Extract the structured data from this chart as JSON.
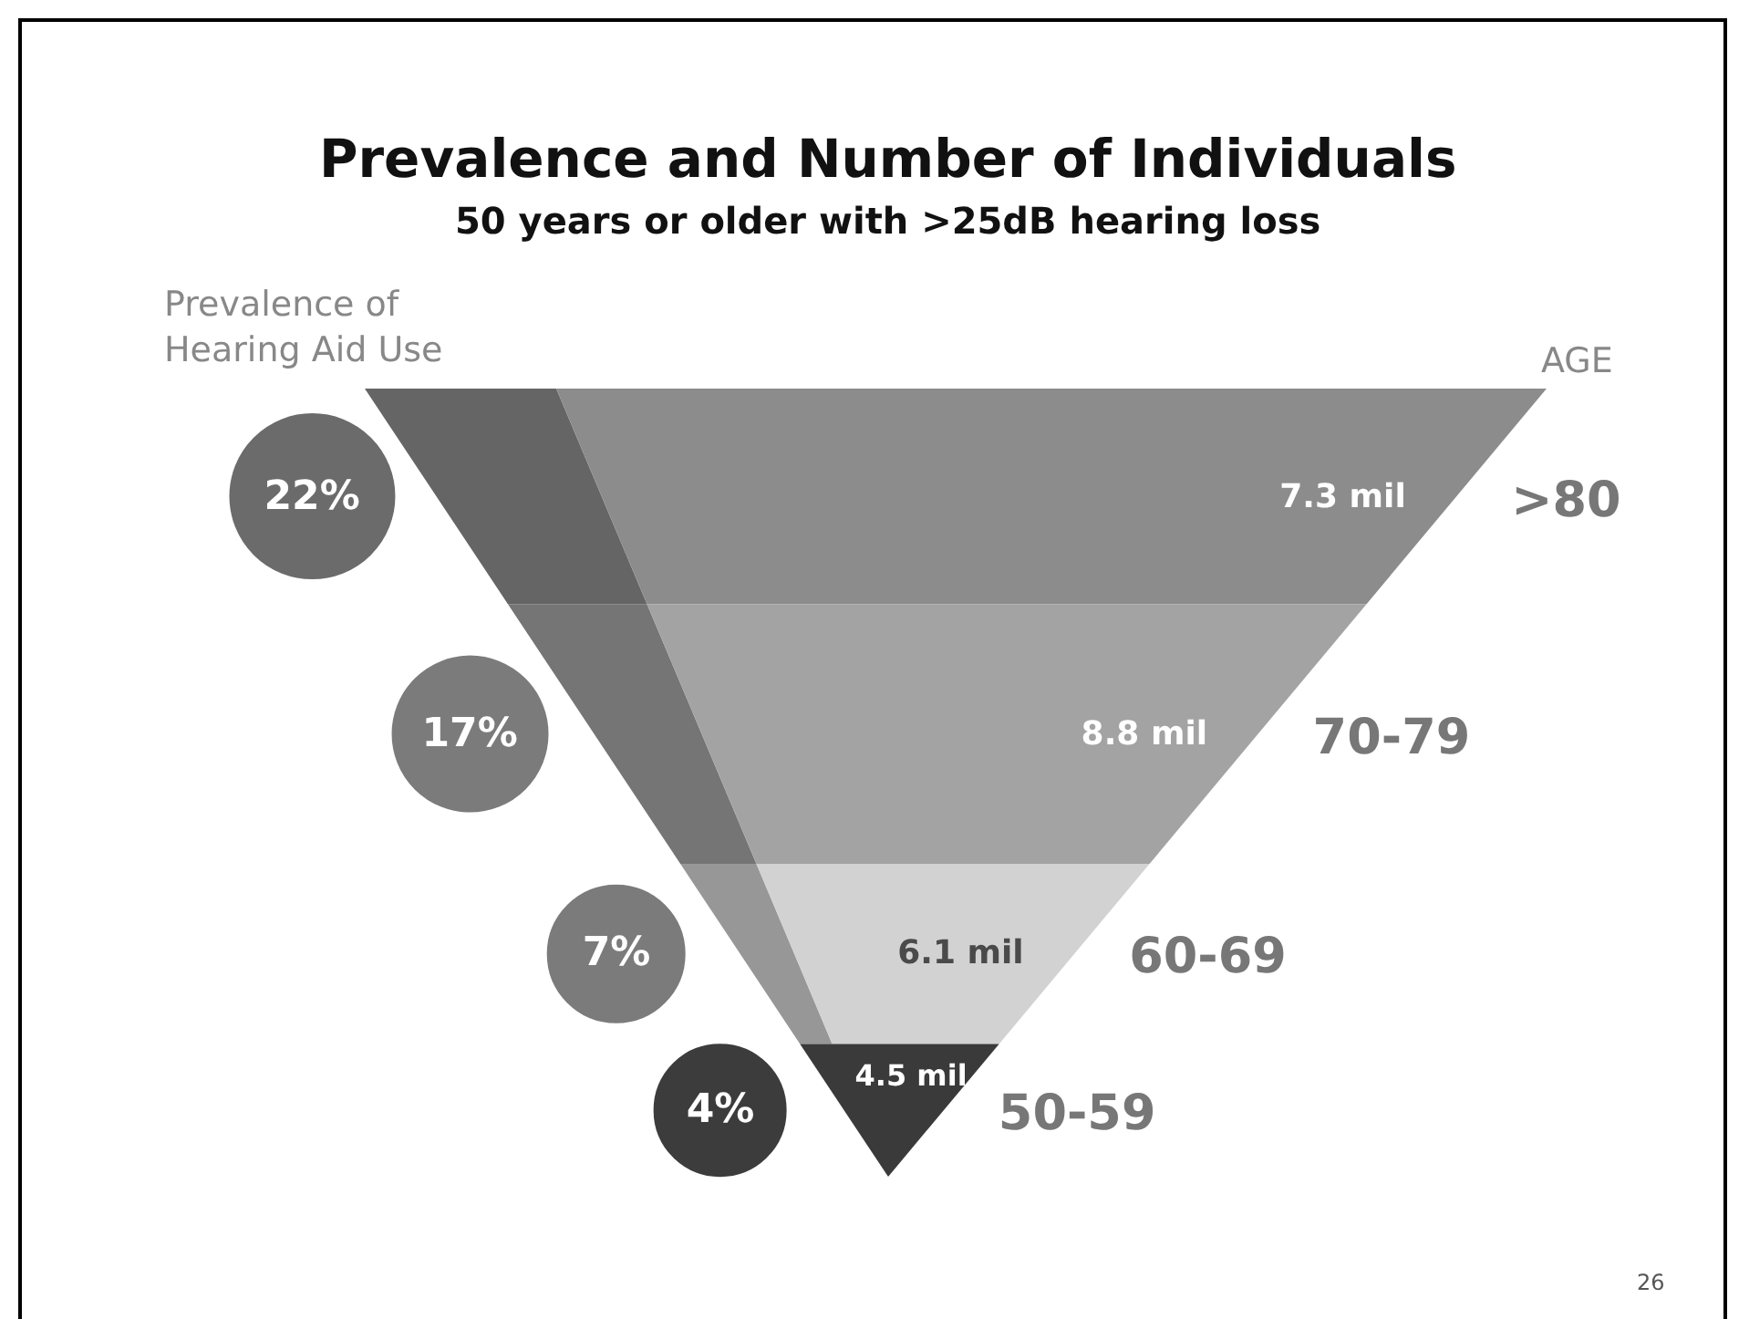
{
  "chart_data": {
    "type": "other",
    "title": "Prevalence and Number of Individuals",
    "subtitle": "50 years or older with >25dB hearing loss",
    "xlabel": "AGE",
    "ylabel": "Prevalence of Hearing Aid  Use",
    "categories": [
      ">80",
      "70-79",
      "60-69",
      "50-59"
    ],
    "series": [
      {
        "values": [
          7.3,
          8.8,
          6.1,
          4.5
        ],
        "value_labels": [
          "7.3 mil",
          "8.8 mil",
          "6.1 mil",
          "4.5 mil"
        ],
        "colors": [
          "#8c8c8c",
          "#a3a3a3",
          "#d2d2d2",
          "#3a3a3a"
        ]
      },
      {
        "values": [
          22,
          17,
          7,
          4
        ],
        "value_labels": [
          "22%",
          "17%",
          "7%",
          "4%"
        ],
        "colors": [
          "#6b6b6b",
          "#7b7b7b",
          "#7b7b7b",
          "#3c3c3c"
        ]
      }
    ],
    "annotations": [
      "26"
    ]
  }
}
